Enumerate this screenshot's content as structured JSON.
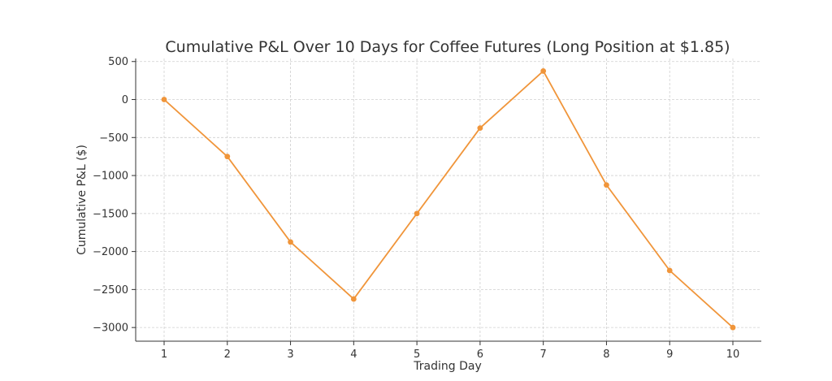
{
  "chart_data": {
    "type": "line",
    "title": "Cumulative P&L Over 10 Days for Coffee Futures (Long Position at $1.85)",
    "xlabel": "Trading Day",
    "ylabel": "Cumulative P&L ($)",
    "x": [
      1,
      2,
      3,
      4,
      5,
      6,
      7,
      8,
      9,
      10
    ],
    "x_tick_labels": [
      "1",
      "2",
      "3",
      "4",
      "5",
      "6",
      "7",
      "8",
      "9",
      "10"
    ],
    "y_ticks": [
      500,
      0,
      -500,
      -1000,
      -1500,
      -2000,
      -2500,
      -3000
    ],
    "y_tick_labels": [
      "500",
      "0",
      "−500",
      "−1000",
      "−1500",
      "−2000",
      "−2500",
      "−3000"
    ],
    "series": [
      {
        "values": [
          0,
          -750,
          -1875,
          -2625,
          -1500,
          -375,
          375,
          -1125,
          -2250,
          -3000
        ],
        "color": "#f0953a"
      }
    ],
    "xlim": [
      0.55,
      10.45
    ],
    "ylim": [
      -3180,
      540
    ],
    "grid": true,
    "marker": "circle"
  }
}
